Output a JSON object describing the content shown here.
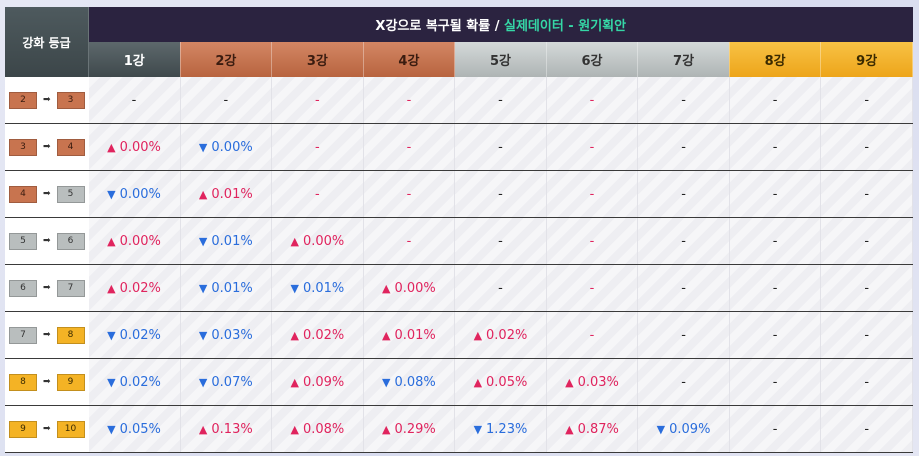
{
  "header": {
    "grade_label": "강화 등급",
    "title_main": "X강으로 복구될 확률  /",
    "title_accent": "실제데이터 - 원기획안"
  },
  "columns": [
    {
      "label": "1강",
      "tone": "dark"
    },
    {
      "label": "2강",
      "tone": "bronze"
    },
    {
      "label": "3강",
      "tone": "bronze"
    },
    {
      "label": "4강",
      "tone": "bronze"
    },
    {
      "label": "5강",
      "tone": "silver"
    },
    {
      "label": "6강",
      "tone": "silver"
    },
    {
      "label": "7강",
      "tone": "silver"
    },
    {
      "label": "8강",
      "tone": "gold"
    },
    {
      "label": "9강",
      "tone": "gold"
    }
  ],
  "colors": {
    "up": "#e0245e",
    "down": "#2a6ddc",
    "bronze": "#c8744f",
    "silver": "#b9bebe",
    "gold": "#f4b325",
    "header": "#2b2340",
    "accent": "#35d7a6"
  },
  "rows": [
    {
      "from": "2",
      "to": "3",
      "from_tone": "bronze",
      "to_tone": "bronze",
      "cells": [
        [
          "-",
          "dash"
        ],
        [
          "-",
          "dash"
        ],
        [
          "-",
          "red"
        ],
        [
          "-",
          "red"
        ],
        [
          "-",
          "dash"
        ],
        [
          "-",
          "red"
        ],
        [
          "-",
          "dash"
        ],
        [
          "-",
          "dash"
        ],
        [
          "-",
          "dash"
        ]
      ]
    },
    {
      "from": "3",
      "to": "4",
      "from_tone": "bronze",
      "to_tone": "bronze",
      "cells": [
        [
          "0.00%",
          "up"
        ],
        [
          "0.00%",
          "down"
        ],
        [
          "-",
          "red"
        ],
        [
          "-",
          "red"
        ],
        [
          "-",
          "dash"
        ],
        [
          "-",
          "red"
        ],
        [
          "-",
          "dash"
        ],
        [
          "-",
          "dash"
        ],
        [
          "-",
          "dash"
        ]
      ]
    },
    {
      "from": "4",
      "to": "5",
      "from_tone": "bronze",
      "to_tone": "silver",
      "cells": [
        [
          "0.00%",
          "down"
        ],
        [
          "0.01%",
          "up"
        ],
        [
          "-",
          "red"
        ],
        [
          "-",
          "red"
        ],
        [
          "-",
          "dash"
        ],
        [
          "-",
          "red"
        ],
        [
          "-",
          "dash"
        ],
        [
          "-",
          "dash"
        ],
        [
          "-",
          "dash"
        ]
      ]
    },
    {
      "from": "5",
      "to": "6",
      "from_tone": "silver",
      "to_tone": "silver",
      "cells": [
        [
          "0.00%",
          "up"
        ],
        [
          "0.01%",
          "down"
        ],
        [
          "0.00%",
          "up"
        ],
        [
          "-",
          "red"
        ],
        [
          "-",
          "dash"
        ],
        [
          "-",
          "red"
        ],
        [
          "-",
          "dash"
        ],
        [
          "-",
          "dash"
        ],
        [
          "-",
          "dash"
        ]
      ]
    },
    {
      "from": "6",
      "to": "7",
      "from_tone": "silver",
      "to_tone": "silver",
      "cells": [
        [
          "0.02%",
          "up"
        ],
        [
          "0.01%",
          "down"
        ],
        [
          "0.01%",
          "down"
        ],
        [
          "0.00%",
          "up"
        ],
        [
          "-",
          "dash"
        ],
        [
          "-",
          "red"
        ],
        [
          "-",
          "dash"
        ],
        [
          "-",
          "dash"
        ],
        [
          "-",
          "dash"
        ]
      ]
    },
    {
      "from": "7",
      "to": "8",
      "from_tone": "silver",
      "to_tone": "gold",
      "cells": [
        [
          "0.02%",
          "down"
        ],
        [
          "0.03%",
          "down"
        ],
        [
          "0.02%",
          "up"
        ],
        [
          "0.01%",
          "up"
        ],
        [
          "0.02%",
          "up"
        ],
        [
          "-",
          "red"
        ],
        [
          "-",
          "dash"
        ],
        [
          "-",
          "dash"
        ],
        [
          "-",
          "dash"
        ]
      ]
    },
    {
      "from": "8",
      "to": "9",
      "from_tone": "gold",
      "to_tone": "gold",
      "cells": [
        [
          "0.02%",
          "down"
        ],
        [
          "0.07%",
          "down"
        ],
        [
          "0.09%",
          "up"
        ],
        [
          "0.08%",
          "down"
        ],
        [
          "0.05%",
          "up"
        ],
        [
          "0.03%",
          "up"
        ],
        [
          "-",
          "dash"
        ],
        [
          "-",
          "dash"
        ],
        [
          "-",
          "dash"
        ]
      ]
    },
    {
      "from": "9",
      "to": "10",
      "from_tone": "gold",
      "to_tone": "gold",
      "cells": [
        [
          "0.05%",
          "down"
        ],
        [
          "0.13%",
          "up"
        ],
        [
          "0.08%",
          "up"
        ],
        [
          "0.29%",
          "up"
        ],
        [
          "1.23%",
          "down"
        ],
        [
          "0.87%",
          "up"
        ],
        [
          "0.09%",
          "down"
        ],
        [
          "-",
          "dash"
        ],
        [
          "-",
          "dash"
        ]
      ]
    }
  ]
}
